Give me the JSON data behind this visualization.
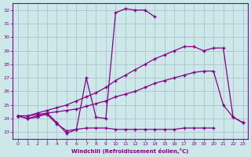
{
  "xlabel": "Windchill (Refroidissement éolien,°C)",
  "bg_color": "#cce8e8",
  "line_color": "#880088",
  "grid_color": "#aabbcc",
  "xlim": [
    -0.5,
    23.5
  ],
  "ylim": [
    22.5,
    32.5
  ],
  "series1_x": [
    0,
    1,
    2,
    3,
    4,
    5,
    6,
    7,
    8,
    9,
    10,
    11,
    12,
    13,
    14
  ],
  "series1_y": [
    24.2,
    24.0,
    24.1,
    24.4,
    23.7,
    22.9,
    23.2,
    27.0,
    24.1,
    24.0,
    31.8,
    32.1,
    32.0,
    32.0,
    31.5
  ],
  "series2_x": [
    0,
    1,
    2,
    3,
    4,
    5,
    6,
    7,
    8,
    9,
    10,
    11,
    12,
    13,
    14,
    15,
    16,
    17,
    18,
    19,
    20
  ],
  "series2_y": [
    24.2,
    24.0,
    24.2,
    24.3,
    23.6,
    23.1,
    23.2,
    23.3,
    23.3,
    23.3,
    23.2,
    23.2,
    23.2,
    23.2,
    23.2,
    23.2,
    23.2,
    23.3,
    23.3,
    23.3,
    23.3
  ],
  "series3_x": [
    0,
    1,
    2,
    3,
    4,
    5,
    6,
    7,
    8,
    9,
    10,
    11,
    12,
    13,
    14,
    15,
    16,
    17,
    18,
    19,
    20,
    21,
    22,
    23
  ],
  "series3_y": [
    24.2,
    24.2,
    24.3,
    24.4,
    24.5,
    24.6,
    24.7,
    24.9,
    25.1,
    25.3,
    25.6,
    25.8,
    26.0,
    26.3,
    26.6,
    26.8,
    27.0,
    27.2,
    27.4,
    27.5,
    27.5,
    25.0,
    24.1,
    23.7
  ],
  "series4_x": [
    0,
    1,
    2,
    3,
    4,
    5,
    6,
    7,
    8,
    9,
    10,
    11,
    12,
    13,
    14,
    15,
    16,
    17,
    18,
    19,
    20,
    21,
    22,
    23
  ],
  "series4_y": [
    24.2,
    24.2,
    24.4,
    24.6,
    24.8,
    25.0,
    25.3,
    25.6,
    25.9,
    26.3,
    26.8,
    27.2,
    27.6,
    28.0,
    28.4,
    28.7,
    29.0,
    29.3,
    29.3,
    29.0,
    29.2,
    29.2,
    24.1,
    23.7
  ]
}
